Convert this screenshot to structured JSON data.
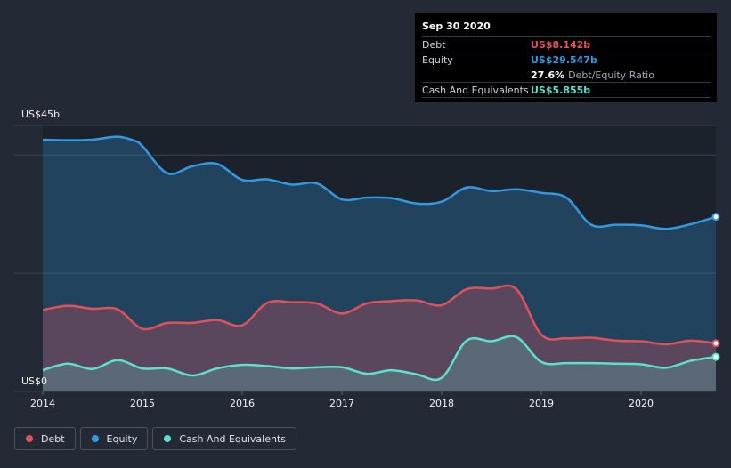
{
  "colors": {
    "debt": "#e0525c",
    "equity": "#3399e0",
    "cash": "#5de0cf"
  },
  "tooltip": {
    "date": "Sep 30 2020",
    "debt_label": "Debt",
    "debt_value": "US$8.142b",
    "equity_label": "Equity",
    "equity_value": "US$29.547b",
    "ratio_value": "27.6%",
    "ratio_label": "Debt/Equity Ratio",
    "cash_label": "Cash And Equivalents",
    "cash_value": "US$5.855b"
  },
  "legend": {
    "debt": "Debt",
    "equity": "Equity",
    "cash": "Cash And Equivalents"
  },
  "chart_data": {
    "type": "area",
    "title": "",
    "xlabel": "",
    "ylabel": "",
    "y_top_label": "US$45b",
    "y_bottom_label": "US$0",
    "ylim": [
      0,
      45
    ],
    "xlim": [
      2014.0,
      2020.75
    ],
    "x_ticks": [
      {
        "value": 2014,
        "label": "2014"
      },
      {
        "value": 2015,
        "label": "2015"
      },
      {
        "value": 2016,
        "label": "2016"
      },
      {
        "value": 2017,
        "label": "2017"
      },
      {
        "value": 2018,
        "label": "2018"
      },
      {
        "value": 2019,
        "label": "2019"
      },
      {
        "value": 2020,
        "label": "2020"
      }
    ],
    "series": [
      {
        "name": "Equity",
        "key": "equity",
        "x": [
          2014.0,
          2014.25,
          2014.5,
          2014.75,
          2014.92,
          2015.0,
          2015.25,
          2015.5,
          2015.75,
          2016.0,
          2016.25,
          2016.5,
          2016.75,
          2017.0,
          2017.25,
          2017.5,
          2017.75,
          2018.0,
          2018.25,
          2018.5,
          2018.75,
          2019.0,
          2019.25,
          2019.5,
          2019.75,
          2020.0,
          2020.25,
          2020.5,
          2020.75
        ],
        "values": [
          42.6,
          42.5,
          42.6,
          43.1,
          42.4,
          41.5,
          36.9,
          38.1,
          38.5,
          35.8,
          35.9,
          35.0,
          35.2,
          32.5,
          32.8,
          32.7,
          31.8,
          32.1,
          34.5,
          33.9,
          34.2,
          33.6,
          32.8,
          28.2,
          28.2,
          28.1,
          27.5,
          28.3,
          29.547
        ]
      },
      {
        "name": "Debt",
        "key": "debt",
        "x": [
          2014.0,
          2014.25,
          2014.5,
          2014.75,
          2015.0,
          2015.25,
          2015.5,
          2015.75,
          2016.0,
          2016.25,
          2016.5,
          2016.75,
          2017.0,
          2017.25,
          2017.5,
          2017.75,
          2018.0,
          2018.25,
          2018.5,
          2018.75,
          2019.0,
          2019.25,
          2019.5,
          2019.75,
          2020.0,
          2020.25,
          2020.5,
          2020.75
        ],
        "values": [
          13.8,
          14.5,
          14.0,
          13.9,
          10.6,
          11.6,
          11.6,
          12.1,
          11.2,
          15.0,
          15.1,
          14.9,
          13.2,
          14.9,
          15.3,
          15.4,
          14.6,
          17.3,
          17.4,
          17.3,
          9.6,
          9.0,
          9.1,
          8.6,
          8.5,
          8.0,
          8.6,
          8.142
        ]
      },
      {
        "name": "Cash And Equivalents",
        "key": "cash",
        "x": [
          2014.0,
          2014.25,
          2014.5,
          2014.75,
          2015.0,
          2015.25,
          2015.5,
          2015.75,
          2016.0,
          2016.25,
          2016.5,
          2016.75,
          2017.0,
          2017.25,
          2017.5,
          2017.75,
          2018.0,
          2018.25,
          2018.5,
          2018.75,
          2019.0,
          2019.25,
          2019.5,
          2019.75,
          2020.0,
          2020.25,
          2020.5,
          2020.75
        ],
        "values": [
          3.6,
          4.7,
          3.8,
          5.3,
          3.9,
          3.9,
          2.7,
          3.9,
          4.5,
          4.3,
          3.9,
          4.1,
          4.1,
          3.0,
          3.6,
          2.9,
          2.3,
          8.6,
          8.5,
          9.2,
          5.0,
          4.8,
          4.8,
          4.7,
          4.6,
          4.0,
          5.2,
          5.855
        ]
      }
    ]
  }
}
